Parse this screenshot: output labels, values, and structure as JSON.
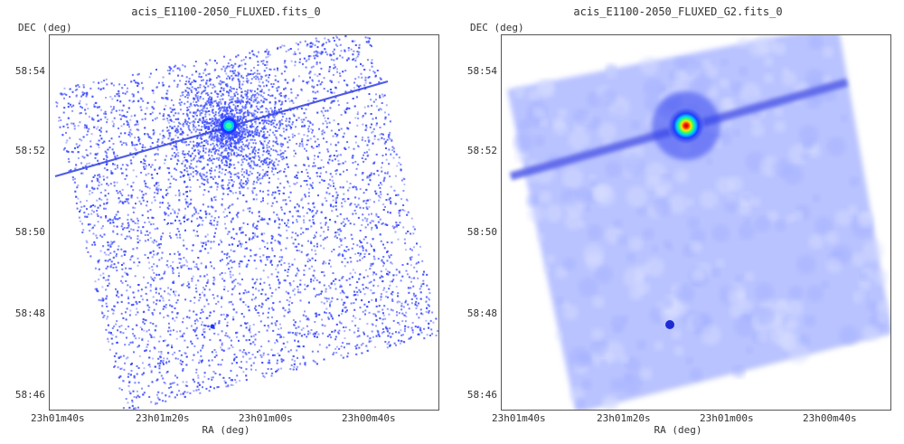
{
  "panels": [
    {
      "title": "acis_E1100-2050_FLUXED.fits_0",
      "style": "raw",
      "colors": {
        "dot": "#3b4bff",
        "bg": "#ffffff"
      },
      "axis": {
        "y_label": "DEC (deg)",
        "x_label": "RA (deg)",
        "y_ticks": [
          "58:54",
          "58:52",
          "58:50",
          "58:48",
          "58:46"
        ],
        "x_ticks": [
          "23h01m40s",
          "23h01m20s",
          "23h01m00s",
          "23h00m40s"
        ]
      }
    },
    {
      "title": "acis_E1100-2050_FLUXED_G2.fits_0",
      "style": "smoothed",
      "colors": {
        "field": "#b9c3ff",
        "streak": "#5a64e8",
        "blob": "#3644ef"
      },
      "axis": {
        "y_label": "DEC (deg)",
        "x_label": "RA (deg)",
        "y_ticks": [
          "58:54",
          "58:52",
          "58:50",
          "58:48",
          "58:46"
        ],
        "x_ticks": [
          "23h01m40s",
          "23h01m20s",
          "23h01m00s",
          "23h00m40s"
        ]
      }
    }
  ]
}
